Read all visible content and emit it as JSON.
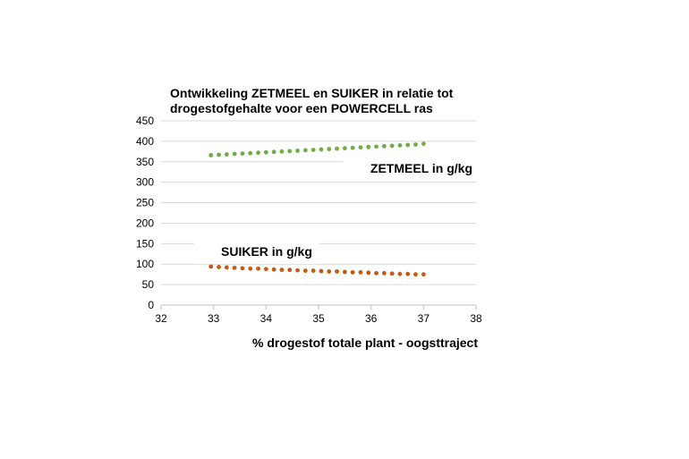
{
  "chart_data": {
    "type": "scatter",
    "title_lines": [
      "Ontwikkeling ZETMEEL en SUIKER in relatie tot",
      "drogestofgehalte voor een POWERCELL ras"
    ],
    "xlabel": "% drogestof totale plant - oogsttraject",
    "ylabel": "",
    "xlim": [
      32,
      38
    ],
    "ylim": [
      0,
      450
    ],
    "x_ticks": [
      "32",
      "33",
      "34",
      "35",
      "36",
      "37",
      "38"
    ],
    "y_ticks": [
      "0",
      "50",
      "100",
      "150",
      "200",
      "250",
      "300",
      "350",
      "400",
      "450"
    ],
    "grid": "horizontal",
    "series": [
      {
        "name": "ZETMEEL in g/kg",
        "color": "#70ad47",
        "x": [
          32.95,
          33.1,
          33.25,
          33.4,
          33.55,
          33.7,
          33.85,
          34.0,
          34.15,
          34.3,
          34.45,
          34.6,
          34.75,
          34.9,
          35.05,
          35.2,
          35.35,
          35.5,
          35.65,
          35.8,
          35.95,
          36.1,
          36.25,
          36.4,
          36.55,
          36.7,
          36.85,
          37.0
        ],
        "y": [
          366,
          367,
          368,
          369,
          370,
          371,
          372,
          373,
          374,
          375,
          376,
          377,
          378,
          379,
          380,
          381,
          382,
          383,
          384,
          385,
          386,
          387,
          388,
          389,
          390,
          391,
          392,
          394
        ]
      },
      {
        "name": "SUIKER in g/kg",
        "color": "#c55a11",
        "x": [
          32.95,
          33.1,
          33.25,
          33.4,
          33.55,
          33.7,
          33.85,
          34.0,
          34.15,
          34.3,
          34.45,
          34.6,
          34.75,
          34.9,
          35.05,
          35.2,
          35.35,
          35.5,
          35.65,
          35.8,
          35.95,
          36.1,
          36.25,
          36.4,
          36.55,
          36.7,
          36.85,
          37.0
        ],
        "y": [
          94,
          93,
          92,
          91,
          90,
          89,
          89,
          88,
          87,
          86,
          86,
          85,
          84,
          84,
          83,
          82,
          82,
          81,
          80,
          80,
          79,
          78,
          78,
          77,
          76,
          76,
          75,
          75
        ]
      }
    ]
  }
}
